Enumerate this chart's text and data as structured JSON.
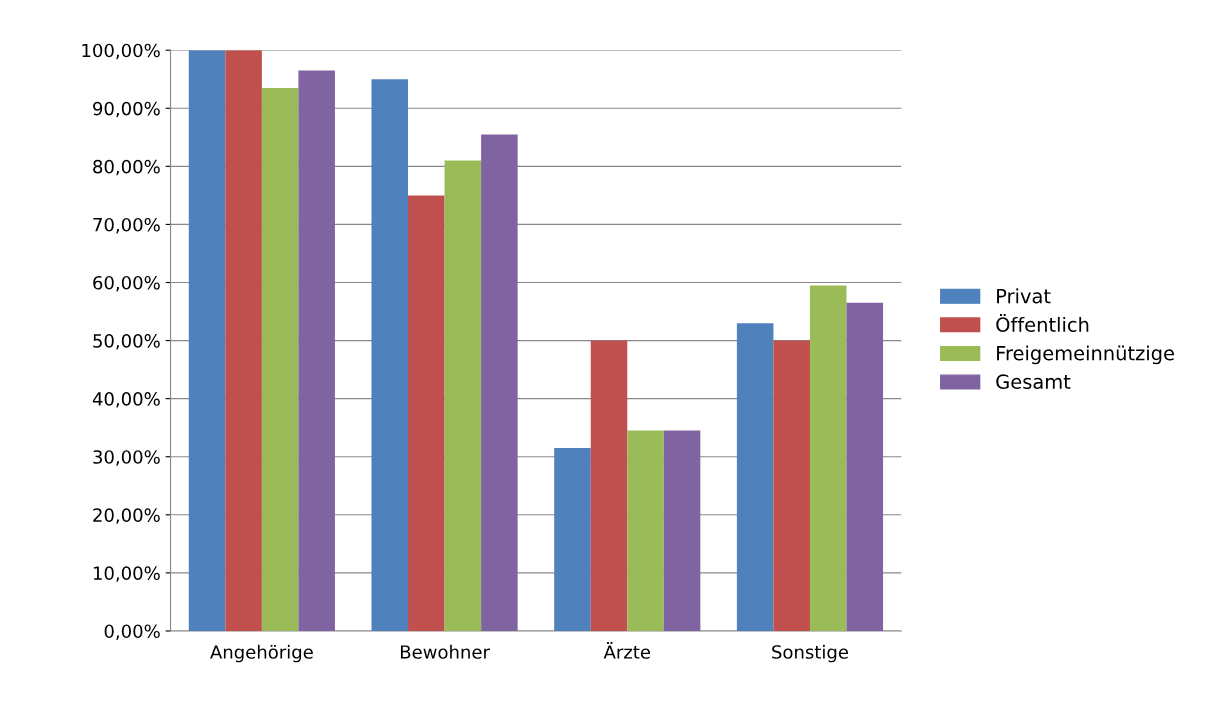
{
  "chart_data": {
    "type": "bar",
    "categories": [
      "Angehörige",
      "Bewohner",
      "Ärzte",
      "Sonstige"
    ],
    "series": [
      {
        "name": "Privat",
        "color": "#4f81bd",
        "values": [
          100,
          95,
          31.5,
          53
        ]
      },
      {
        "name": "Öffentlich",
        "color": "#c0504d",
        "values": [
          100,
          75,
          50,
          50
        ]
      },
      {
        "name": "Freigemeinnützige",
        "color": "#9bbb59",
        "values": [
          93.5,
          81,
          34.5,
          59.5
        ]
      },
      {
        "name": "Gesamt",
        "color": "#8064a2",
        "values": [
          96.5,
          85.5,
          34.5,
          56.5
        ]
      }
    ],
    "ylim": [
      0,
      100
    ],
    "yticks": [
      {
        "value": 0,
        "label": "0,00%"
      },
      {
        "value": 10,
        "label": "10,00%"
      },
      {
        "value": 20,
        "label": "20,00%"
      },
      {
        "value": 30,
        "label": "30,00%"
      },
      {
        "value": 40,
        "label": "40,00%"
      },
      {
        "value": 50,
        "label": "50,00%"
      },
      {
        "value": 60,
        "label": "60,00%"
      },
      {
        "value": 70,
        "label": "70,00%"
      },
      {
        "value": 80,
        "label": "80,00%"
      },
      {
        "value": 90,
        "label": "90,00%"
      },
      {
        "value": 100,
        "label": "100,00%"
      }
    ],
    "grid": "y",
    "legend": "right"
  }
}
